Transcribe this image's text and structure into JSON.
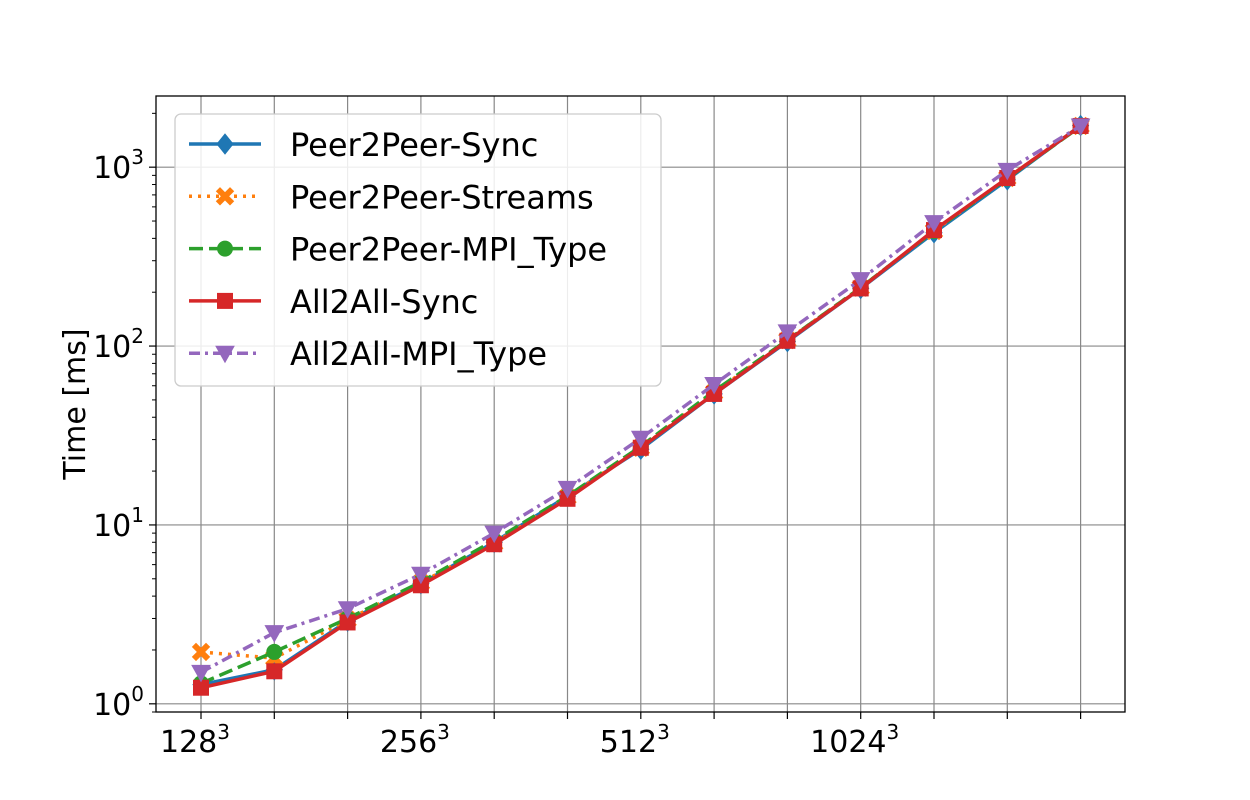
{
  "chart_data": {
    "type": "line",
    "title": "",
    "xlabel": "",
    "ylabel": "Time [ms]",
    "y_scale": "log",
    "ylim": [
      0.9,
      2500
    ],
    "y_ticks": [
      {
        "value": 1,
        "base": "10",
        "exp": "0"
      },
      {
        "value": 10,
        "base": "10",
        "exp": "1"
      },
      {
        "value": 100,
        "base": "10",
        "exp": "2"
      },
      {
        "value": 1000,
        "base": "10",
        "exp": "3"
      }
    ],
    "x_positions": [
      0,
      1,
      2,
      3,
      4,
      5,
      6,
      7,
      8,
      9,
      10,
      11,
      12
    ],
    "x_tick_labels": [
      {
        "position": 0,
        "base": "128",
        "exp": "3"
      },
      {
        "position": 3,
        "base": "256",
        "exp": "3"
      },
      {
        "position": 6,
        "base": "512",
        "exp": "3"
      },
      {
        "position": 9,
        "base": "1024",
        "exp": "3"
      }
    ],
    "grid": true,
    "legend_position": "top-left",
    "series": [
      {
        "name": "Peer2Peer-Sync",
        "color": "#1f77b4",
        "dash": "solid",
        "marker": "diamond",
        "values": [
          1.28,
          1.55,
          2.9,
          4.7,
          8.0,
          14.5,
          26.5,
          54,
          106,
          210,
          430,
          850,
          1710
        ]
      },
      {
        "name": "Peer2Peer-Streams",
        "color": "#ff7f0e",
        "dash": "dotted",
        "marker": "x",
        "values": [
          1.95,
          1.8,
          2.95,
          4.75,
          7.9,
          14.3,
          27.0,
          55,
          108,
          212,
          440,
          870,
          1700
        ]
      },
      {
        "name": "Peer2Peer-MPI_Type",
        "color": "#2ca02c",
        "dash": "dashed",
        "marker": "circle",
        "values": [
          1.3,
          1.95,
          3.0,
          4.8,
          8.2,
          14.5,
          27.5,
          56,
          108,
          212,
          440,
          865,
          1690
        ]
      },
      {
        "name": "All2All-Sync",
        "color": "#d62728",
        "dash": "solid",
        "marker": "square",
        "values": [
          1.23,
          1.52,
          2.85,
          4.6,
          7.8,
          14.0,
          27.0,
          54,
          107,
          210,
          445,
          870,
          1700
        ]
      },
      {
        "name": "All2All-MPI_Type",
        "color": "#9467bd",
        "dash": "dashdot",
        "marker": "triangle-down",
        "values": [
          1.5,
          2.5,
          3.4,
          5.3,
          9.0,
          16.0,
          30.5,
          61,
          120,
          235,
          490,
          960,
          1700
        ]
      }
    ]
  }
}
